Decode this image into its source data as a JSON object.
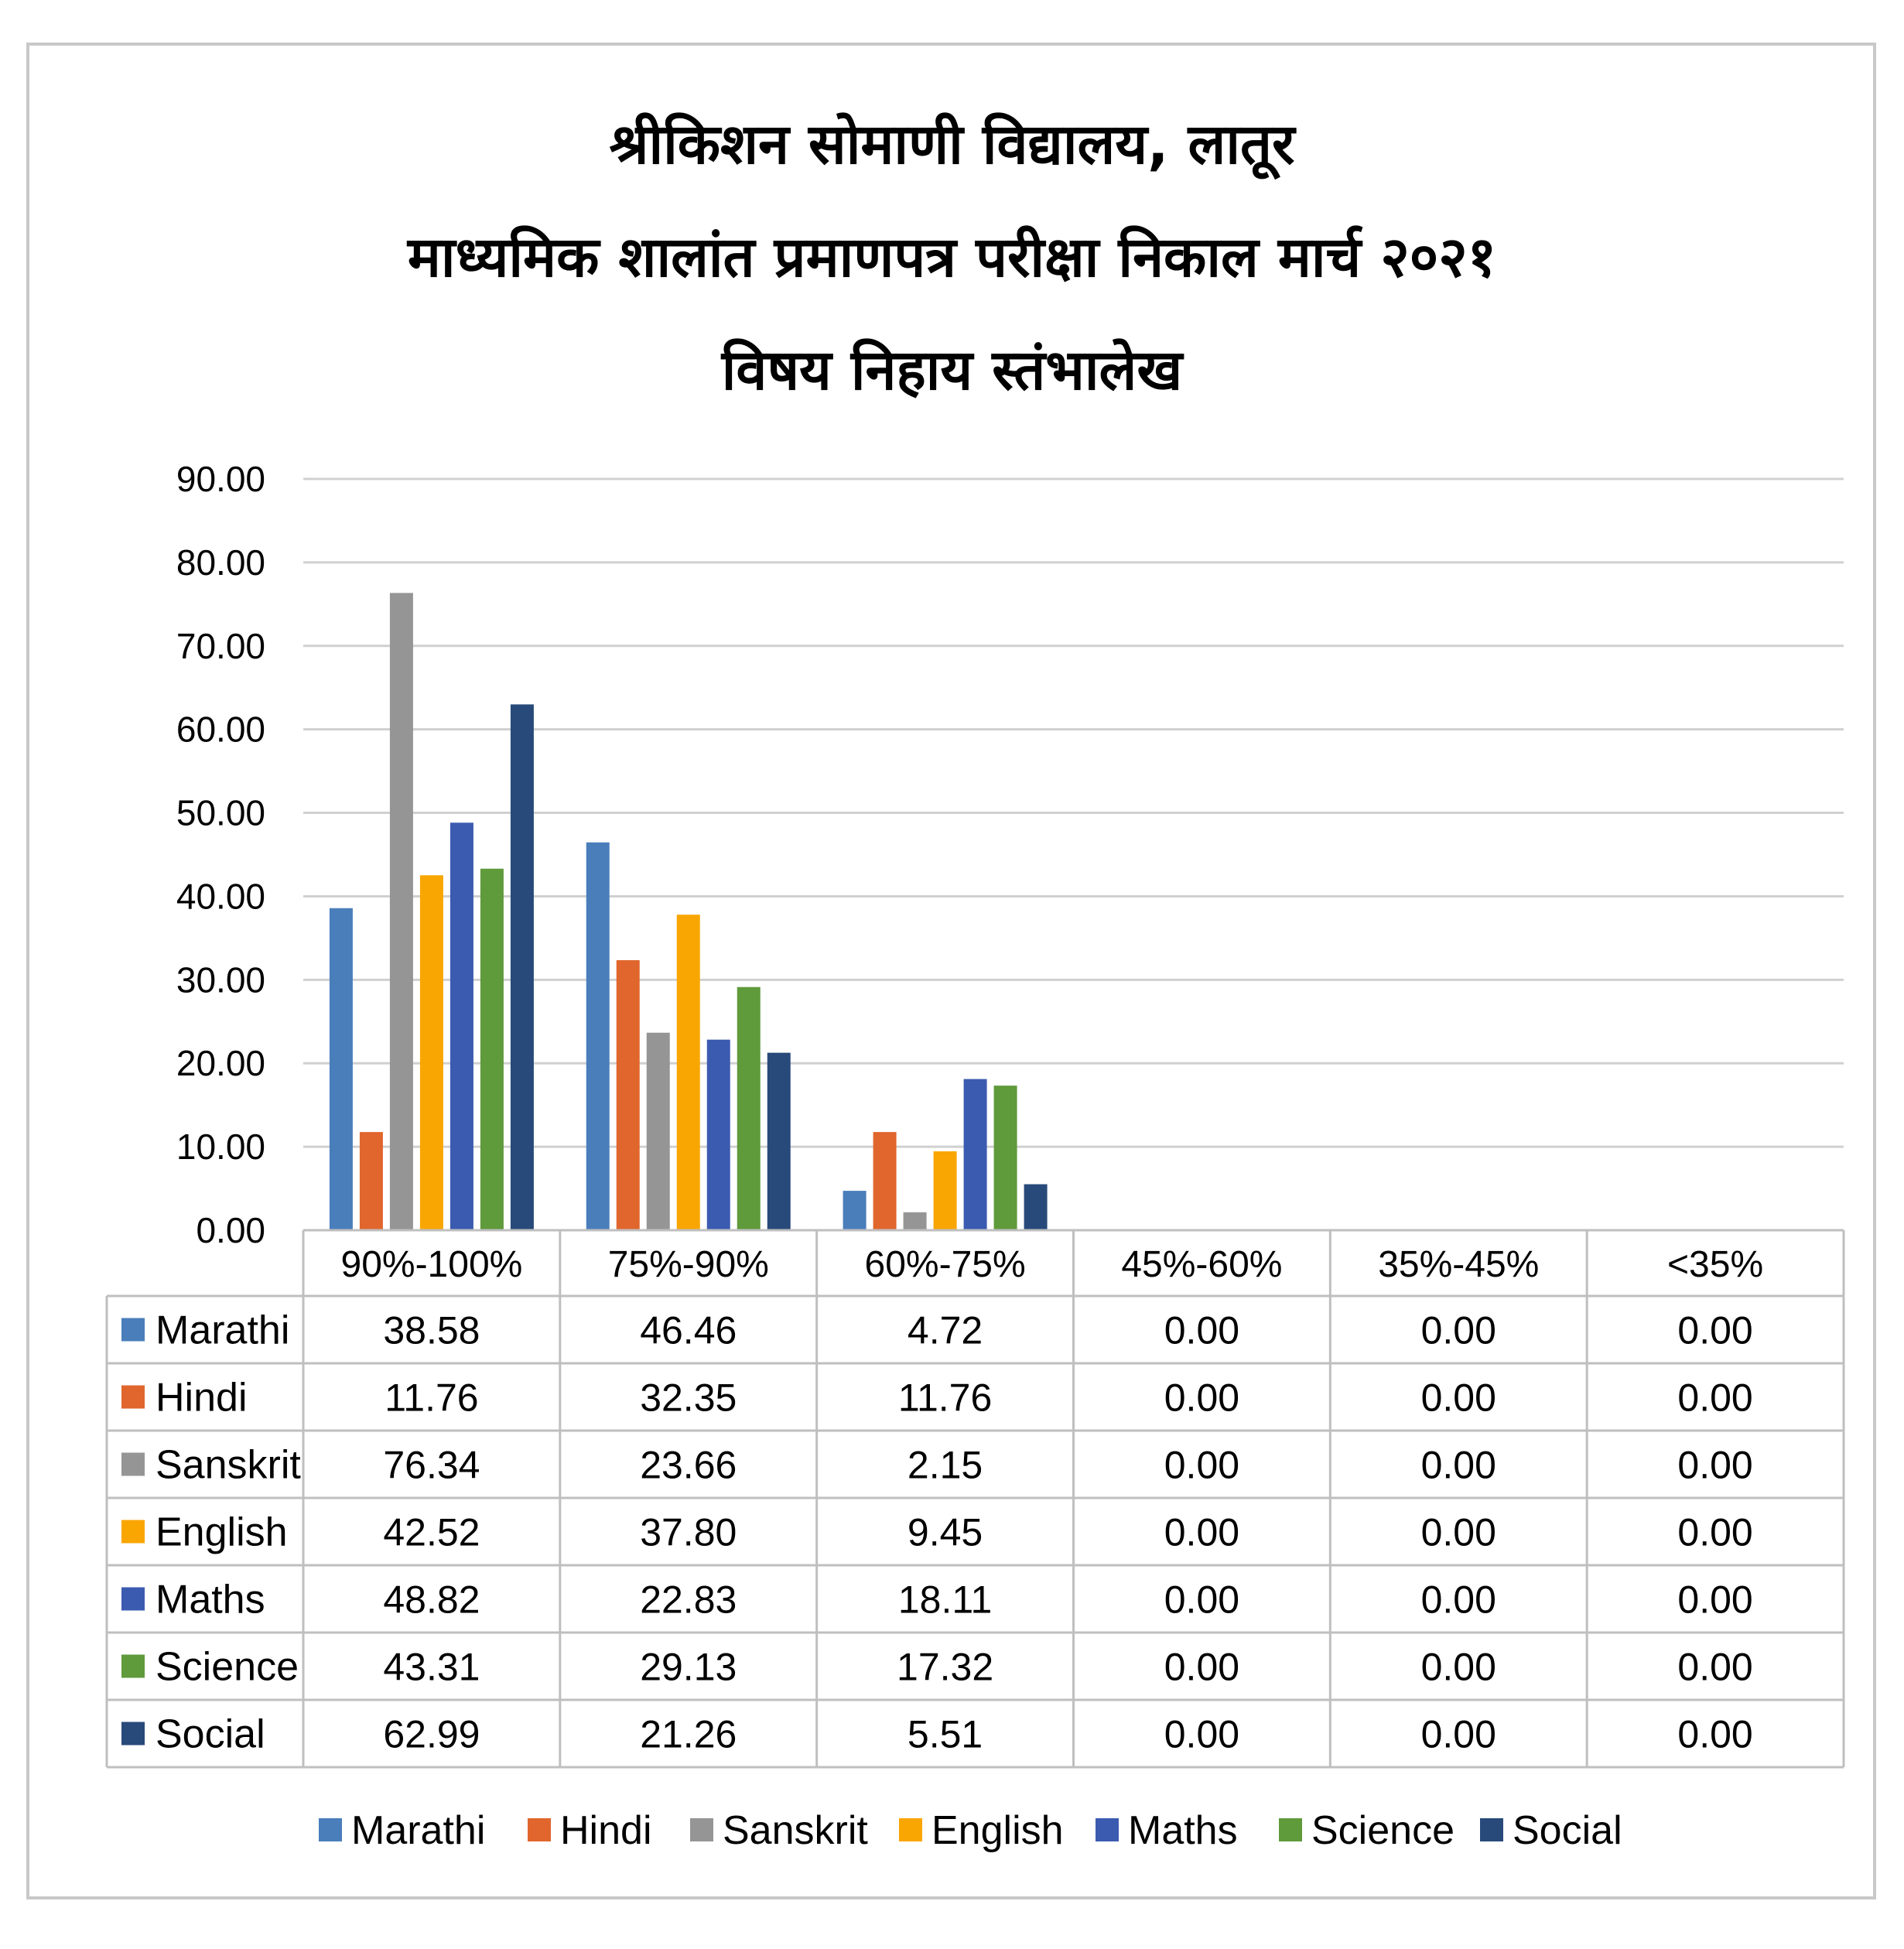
{
  "chart_data": {
    "type": "bar",
    "title": [
      "श्रीकिशन सोमाणी विद्यालय, लातूर",
      "माध्यमिक शालांत प्रमाणपत्र परीक्षा निकाल मार्च २०२१",
      "विषय निहाय स्तंभालेख"
    ],
    "categories": [
      "90%-100%",
      "75%-90%",
      "60%-75%",
      "45%-60%",
      "35%-45%",
      "<35%"
    ],
    "ylim": [
      0,
      90
    ],
    "yticks": [
      "0.00",
      "10.00",
      "20.00",
      "30.00",
      "40.00",
      "50.00",
      "60.00",
      "70.00",
      "80.00",
      "90.00"
    ],
    "grid": true,
    "legend": "bottom",
    "data_table": true,
    "series": [
      {
        "name": "Marathi",
        "color": "#4a7ebb",
        "values": [
          38.58,
          46.46,
          4.72,
          0.0,
          0.0,
          0.0
        ],
        "labels": [
          "38.58",
          "46.46",
          "4.72",
          "0.00",
          "0.00",
          "0.00"
        ]
      },
      {
        "name": "Hindi",
        "color": "#e0662d",
        "values": [
          11.76,
          32.35,
          11.76,
          0.0,
          0.0,
          0.0
        ],
        "labels": [
          "11.76",
          "32.35",
          "11.76",
          "0.00",
          "0.00",
          "0.00"
        ]
      },
      {
        "name": "Sanskrit",
        "color": "#959595",
        "values": [
          76.34,
          23.66,
          2.15,
          0.0,
          0.0,
          0.0
        ],
        "labels": [
          "76.34",
          "23.66",
          "2.15",
          "0.00",
          "0.00",
          "0.00"
        ]
      },
      {
        "name": "English",
        "color": "#f9a602",
        "values": [
          42.52,
          37.8,
          9.45,
          0.0,
          0.0,
          0.0
        ],
        "labels": [
          "42.52",
          "37.80",
          "9.45",
          "0.00",
          "0.00",
          "0.00"
        ]
      },
      {
        "name": "Maths",
        "color": "#3b5bb0",
        "values": [
          48.82,
          22.83,
          18.11,
          0.0,
          0.0,
          0.0
        ],
        "labels": [
          "48.82",
          "22.83",
          "18.11",
          "0.00",
          "0.00",
          "0.00"
        ]
      },
      {
        "name": "Science",
        "color": "#5f9a3b",
        "values": [
          43.31,
          29.13,
          17.32,
          0.0,
          0.0,
          0.0
        ],
        "labels": [
          "43.31",
          "29.13",
          "17.32",
          "0.00",
          "0.00",
          "0.00"
        ]
      },
      {
        "name": "Social",
        "color": "#284a7a",
        "values": [
          62.99,
          21.26,
          5.51,
          0.0,
          0.0,
          0.0
        ],
        "labels": [
          "62.99",
          "21.26",
          "5.51",
          "0.00",
          "0.00",
          "0.00"
        ]
      }
    ]
  }
}
